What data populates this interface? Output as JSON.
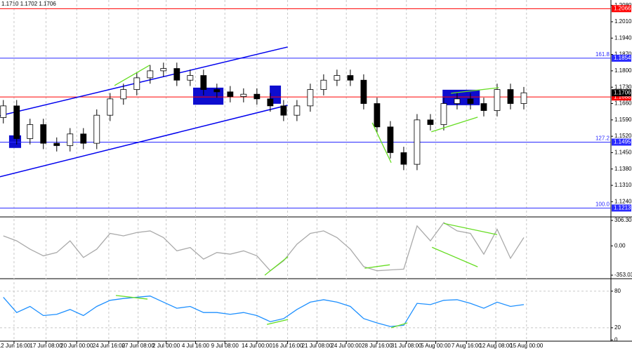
{
  "chart_data": {
    "type": "candlestick",
    "header_text": "1.1710 1.1702 1.1706",
    "x": [
      0,
      1,
      2,
      3,
      4,
      5,
      6,
      7,
      8,
      9,
      10,
      11,
      12,
      13,
      14,
      15,
      16,
      17,
      18,
      19,
      20,
      21,
      22,
      23,
      24,
      25,
      26,
      27,
      28,
      29,
      30,
      31,
      32,
      33,
      34,
      35,
      36,
      37,
      38,
      39
    ],
    "open": [
      1.16,
      1.165,
      1.151,
      1.157,
      1.149,
      1.148,
      1.153,
      1.149,
      1.161,
      1.168,
      1.172,
      1.177,
      1.18,
      1.181,
      1.176,
      1.178,
      1.172,
      1.171,
      1.169,
      1.17,
      1.168,
      1.165,
      1.161,
      1.165,
      1.172,
      1.176,
      1.178,
      1.176,
      1.166,
      1.156,
      1.145,
      1.14,
      1.159,
      1.157,
      1.166,
      1.168,
      1.166,
      1.163,
      1.172,
      1.166
    ],
    "high": [
      1.1675,
      1.1675,
      1.1595,
      1.1595,
      1.1515,
      1.1555,
      1.1555,
      1.1635,
      1.1705,
      1.1745,
      1.1795,
      1.1825,
      1.1835,
      1.1835,
      1.1805,
      1.1805,
      1.1745,
      1.1735,
      1.1725,
      1.1725,
      1.1705,
      1.1675,
      1.1675,
      1.1745,
      1.1785,
      1.1805,
      1.1805,
      1.1785,
      1.1685,
      1.1585,
      1.1475,
      1.1615,
      1.1615,
      1.1685,
      1.1705,
      1.1705,
      1.1685,
      1.1745,
      1.1745,
      1.1731
    ],
    "low": [
      1.1575,
      1.1485,
      1.1485,
      1.1465,
      1.1455,
      1.1455,
      1.1465,
      1.1465,
      1.1585,
      1.1655,
      1.1695,
      1.1745,
      1.1775,
      1.1735,
      1.1735,
      1.1695,
      1.1685,
      1.1665,
      1.1665,
      1.1655,
      1.1625,
      1.1585,
      1.1585,
      1.1625,
      1.1695,
      1.1735,
      1.1735,
      1.1635,
      1.1535,
      1.1425,
      1.1375,
      1.1375,
      1.1545,
      1.1545,
      1.1635,
      1.1635,
      1.1605,
      1.1605,
      1.1635,
      1.1635
    ],
    "close": [
      1.165,
      1.151,
      1.157,
      1.149,
      1.148,
      1.153,
      1.149,
      1.161,
      1.168,
      1.172,
      1.177,
      1.18,
      1.181,
      1.176,
      1.178,
      1.172,
      1.171,
      1.169,
      1.17,
      1.168,
      1.165,
      1.161,
      1.165,
      1.172,
      1.176,
      1.178,
      1.176,
      1.166,
      1.156,
      1.145,
      1.14,
      1.159,
      1.157,
      1.166,
      1.168,
      1.166,
      1.163,
      1.172,
      1.166,
      1.1706
    ],
    "xlim": [
      -0.25,
      45
    ],
    "ylim": [
      1.1178,
      1.2103
    ],
    "grid": true,
    "yticks": [
      {
        "value": 1.208,
        "label": "1.2080"
      },
      {
        "value": 1.201,
        "label": "1.2010"
      },
      {
        "value": 1.194,
        "label": "1.1940"
      },
      {
        "value": 1.187,
        "label": "1.1870"
      },
      {
        "value": 1.18,
        "label": "1.1800"
      },
      {
        "value": 1.173,
        "label": "1.1730"
      },
      {
        "value": 1.166,
        "label": "1.1660"
      },
      {
        "value": 1.159,
        "label": "1.1590"
      },
      {
        "value": 1.152,
        "label": "1.1520"
      },
      {
        "value": 1.145,
        "label": "1.1450"
      },
      {
        "value": 1.138,
        "label": "1.1380"
      },
      {
        "value": 1.131,
        "label": "1.1310"
      },
      {
        "value": 1.124,
        "label": "1.1240"
      }
    ],
    "xticks": [
      {
        "value": 0.8,
        "label": "12 Jun 16:00"
      },
      {
        "value": 3.2,
        "label": "17 Jun 08:00"
      },
      {
        "value": 5.5,
        "label": "20 Jun 00:00"
      },
      {
        "value": 7.9,
        "label": "24 Jun 16:00"
      },
      {
        "value": 10.1,
        "label": "27 Jun 08:00"
      },
      {
        "value": 12.2,
        "label": "2 Jul 00:00"
      },
      {
        "value": 14.4,
        "label": "4 Jul 16:00"
      },
      {
        "value": 16.6,
        "label": "9 Jul 08:00"
      },
      {
        "value": 19.0,
        "label": "14 Jul 00:00"
      },
      {
        "value": 21.3,
        "label": "16 Jul 16:00"
      },
      {
        "value": 23.5,
        "label": "21 Jul 08:00"
      },
      {
        "value": 25.7,
        "label": "24 Jul 00:00"
      },
      {
        "value": 28.0,
        "label": "28 Jul 16:00"
      },
      {
        "value": 30.2,
        "label": "31 Jul 08:00"
      },
      {
        "value": 32.4,
        "label": "5 Aug 00:00"
      },
      {
        "value": 34.7,
        "label": "7 Aug 16:00"
      },
      {
        "value": 36.9,
        "label": "12 Aug 08:00"
      },
      {
        "value": 39.2,
        "label": "15 Aug 00:00"
      }
    ],
    "levels": [
      {
        "value": 1.2066,
        "label": "1.2066",
        "color": "#ff0000"
      },
      {
        "value": 1.1854,
        "label": "1.1854",
        "color": "#2a2aff",
        "ratio": "161.8"
      },
      {
        "value": 1.1688,
        "label": "1.1688",
        "color": "#ff0000"
      },
      {
        "value": 1.1495,
        "label": "1.1495",
        "color": "#2a2aff",
        "ratio": "127.2"
      },
      {
        "value": 1.1213,
        "label": "1.1213",
        "color": "#2a2aff",
        "ratio": "100.0"
      }
    ],
    "last_price": {
      "value": 1.1706,
      "label": "1.1706"
    },
    "trendlines": [
      {
        "x": [
          -0.25,
          21.3
        ],
        "y": [
          1.1608,
          1.1902
        ],
        "color": "#0000ee"
      },
      {
        "x": [
          -0.25,
          21.3
        ],
        "y": [
          1.1347,
          1.1653
        ],
        "color": "#0000ee"
      }
    ],
    "zones": [
      {
        "x": [
          14.22,
          16.49
        ],
        "y": [
          1.1655,
          1.1728
        ]
      },
      {
        "x": [
          19.96,
          20.8
        ],
        "y": [
          1.1659,
          1.1737
        ]
      },
      {
        "x": [
          32.91,
          35.7
        ],
        "y": [
          1.1653,
          1.1719
        ]
      },
      {
        "x": [
          0.43,
          1.33
        ],
        "y": [
          1.147,
          1.1524
        ]
      }
    ],
    "zone_color": "#0000cc",
    "divergence_color": "#66dd22",
    "divergences": [
      {
        "x": [
          8.33,
          10.96
        ],
        "y": [
          1.1737,
          1.1824
        ]
      },
      {
        "x": [
          27.64,
          29.06
        ],
        "y": [
          1.1578,
          1.1407
        ]
      },
      {
        "x": [
          32.07,
          35.54
        ],
        "y": [
          1.1539,
          1.1602
        ]
      },
      {
        "x": [
          33.54,
          37.12
        ],
        "y": [
          1.1704,
          1.1728
        ]
      }
    ],
    "cci": {
      "values": [
        120,
        60,
        -40,
        -120,
        -80,
        60,
        -140,
        -40,
        150,
        120,
        160,
        180,
        100,
        -60,
        -20,
        -160,
        -80,
        -100,
        -60,
        -120,
        -300,
        -180,
        20,
        150,
        180,
        100,
        -40,
        -250,
        -300,
        -290,
        -280,
        240,
        60,
        280,
        180,
        150,
        -100,
        200,
        -150,
        100
      ],
      "color": "#aaaaaa",
      "ylim": [
        -387,
        323
      ],
      "yticks": [
        306.3051,
        {
          "value": 0,
          "label": "0.00"
        },
        -353.035
      ],
      "divergences": [
        {
          "x": [
            19.59,
            21.33
          ],
          "y": [
            -353,
            -130
          ]
        },
        {
          "x": [
            27.07,
            28.96
          ],
          "y": [
            -270,
            -228
          ]
        },
        {
          "x": [
            32.12,
            35.54
          ],
          "y": [
            -17,
            -253
          ]
        },
        {
          "x": [
            33.01,
            37.0
          ],
          "y": [
            270,
            135
          ]
        }
      ]
    },
    "rsi": {
      "values": [
        70,
        45,
        55,
        40,
        42,
        50,
        40,
        55,
        65,
        68,
        70,
        72,
        62,
        52,
        55,
        45,
        45,
        42,
        45,
        40,
        30,
        35,
        50,
        62,
        66,
        62,
        55,
        35,
        28,
        22,
        24,
        60,
        58,
        65,
        66,
        60,
        52,
        62,
        55,
        58
      ],
      "color": "#1e90ff",
      "ylim": [
        -2,
        97
      ],
      "yticks": [
        0,
        20,
        80
      ],
      "levels": [
        20,
        80
      ],
      "divergences": [
        {
          "x": [
            8.43,
            10.8
          ],
          "y": [
            73,
            67
          ]
        },
        {
          "x": [
            19.75,
            21.33
          ],
          "y": [
            25.5,
            33.5
          ]
        },
        {
          "x": [
            29.06,
            30.28
          ],
          "y": [
            20,
            28
          ]
        }
      ]
    }
  }
}
